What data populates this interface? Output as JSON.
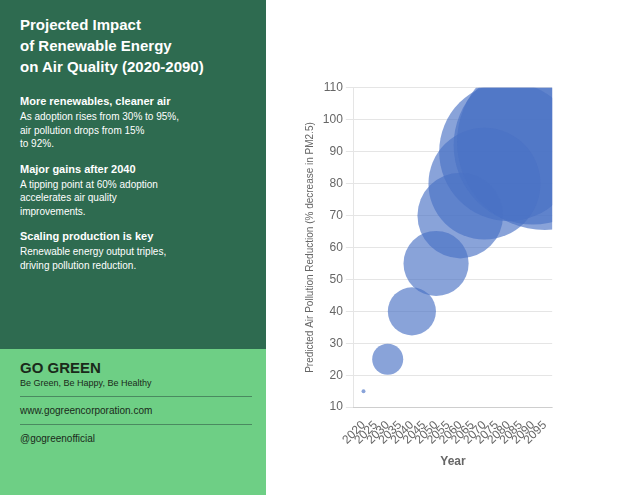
{
  "chart_data": {
    "type": "bubble",
    "title": "Projected Impact\nof Renewable Energy\non Air Quality (2020-2090)",
    "xlabel": "Year",
    "ylabel": "Predicted Air Pollution Reduction (% decrease in PM2.5)",
    "x": [
      2020,
      2030,
      2040,
      2050,
      2060,
      2070,
      2080,
      2090,
      2095
    ],
    "values": [
      15,
      25,
      40,
      55,
      70,
      80,
      90,
      92,
      93
    ],
    "sizes": [
      8,
      500,
      1200,
      2200,
      3800,
      6500,
      10000,
      13000,
      16000
    ],
    "color": "#4a72c4",
    "xlim": [
      2016,
      2098
    ],
    "xticks": [
      2020,
      2025,
      2030,
      2035,
      2040,
      2045,
      2050,
      2055,
      2060,
      2065,
      2070,
      2075,
      2080,
      2085,
      2090,
      2095
    ],
    "ylim": [
      10,
      110
    ],
    "yticks": [
      10,
      20,
      30,
      40,
      50,
      60,
      70,
      80,
      90,
      100,
      110
    ],
    "grid": true,
    "annotations": [
      "More renewables, cleaner air",
      "As adoption rises from 30% to 95%,\nair pollution drops from 15%\nto 92%.",
      "Major gains after 2040",
      "A tipping point at 60% adoption\naccelerates air quality\nimprovements.",
      "Scaling production is key",
      "Renewable energy output triples,\ndriving pollution reduction.",
      "GO GREEN",
      "Be Green, Be Happy, Be Healthy",
      "www.gogreencorporation.com",
      "@gogreenofficial"
    ]
  }
}
